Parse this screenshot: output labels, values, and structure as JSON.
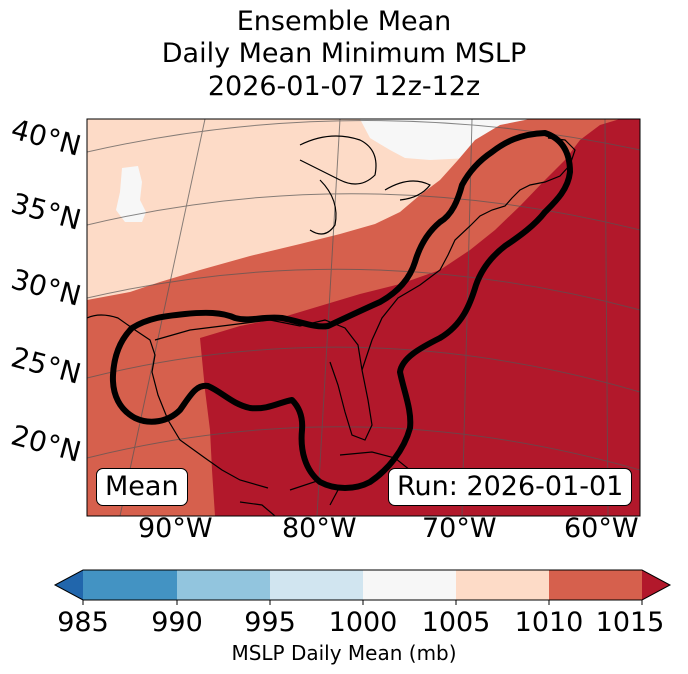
{
  "title": {
    "line1": "Ensemble Mean",
    "line2": "Daily Mean Minimum MSLP",
    "line3": "2026-01-07 12z-12z"
  },
  "map": {
    "lat_labels": [
      "40°N",
      "35°N",
      "30°N",
      "25°N",
      "20°N"
    ],
    "lon_labels": [
      "90°W",
      "80°W",
      "70°W",
      "60°W"
    ],
    "mean_label": "Mean",
    "run_label": "Run: 2026-01-01"
  },
  "colorbar": {
    "title": "MSLP Daily Mean (mb)",
    "ticks": [
      "985",
      "990",
      "995",
      "1000",
      "1005",
      "1010",
      "1015"
    ],
    "colors": {
      "under": "#2166ac",
      "c985_990": "#4393c3",
      "c990_995": "#92c5de",
      "c995_1000": "#d1e5f0",
      "c1000_1005": "#f7f7f7",
      "c1005_1010": "#fddbc7",
      "c1010_1015": "#d6604d",
      "over": "#b2182b"
    }
  }
}
